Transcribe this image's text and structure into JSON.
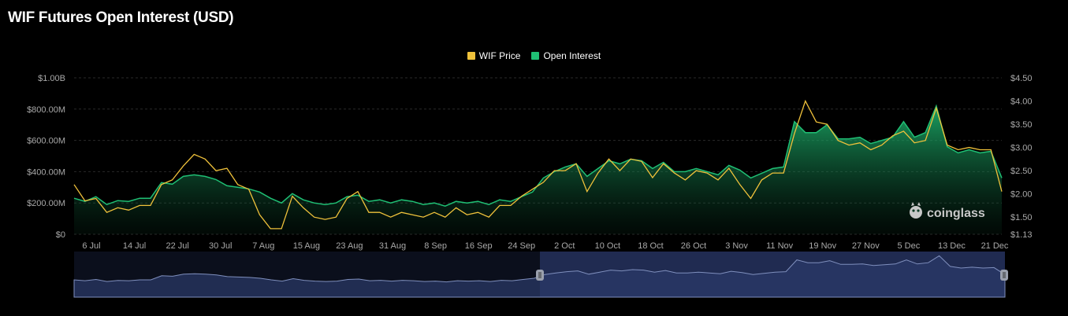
{
  "title": "WIF Futures Open Interest (USD)",
  "watermark": "coinglass",
  "legend": [
    {
      "label": "WIF Price",
      "color": "#f0c23b"
    },
    {
      "label": "Open Interest",
      "color": "#1fbf74"
    }
  ],
  "colors": {
    "price": "#f0c23b",
    "oi": "#1fbf74",
    "navigator": "#1a2440",
    "navigator_line": "#7f8fbd"
  },
  "chart_data": {
    "type": "area",
    "title": "WIF Futures Open Interest (USD)",
    "x_labels": [
      "6 Jul",
      "14 Jul",
      "22 Jul",
      "30 Jul",
      "7 Aug",
      "15 Aug",
      "23 Aug",
      "31 Aug",
      "8 Sep",
      "16 Sep",
      "24 Sep",
      "2 Oct",
      "10 Oct",
      "18 Oct",
      "26 Oct",
      "3 Nov",
      "11 Nov",
      "19 Nov",
      "27 Nov",
      "5 Dec",
      "13 Dec",
      "21 Dec"
    ],
    "y_left_ticks": [
      "$0",
      "$200.00M",
      "$400.00M",
      "$600.00M",
      "$800.00M",
      "$1.00B"
    ],
    "y_left_range": [
      0,
      1000
    ],
    "y_left_unit": "M USD",
    "y_right_ticks": [
      "$1.13",
      "$1.50",
      "$2.00",
      "$2.50",
      "$3.00",
      "$3.50",
      "$4.00",
      "$4.50"
    ],
    "y_right_range": [
      1.13,
      4.5
    ],
    "series": [
      {
        "name": "Open Interest",
        "axis": "left",
        "values": [
          230,
          210,
          240,
          190,
          215,
          210,
          230,
          230,
          330,
          320,
          370,
          380,
          370,
          350,
          310,
          300,
          290,
          270,
          230,
          200,
          260,
          220,
          200,
          190,
          200,
          240,
          250,
          210,
          220,
          200,
          220,
          210,
          190,
          200,
          180,
          210,
          200,
          210,
          190,
          220,
          210,
          240,
          270,
          360,
          400,
          430,
          450,
          370,
          420,
          470,
          450,
          480,
          470,
          420,
          460,
          400,
          400,
          420,
          400,
          380,
          440,
          410,
          360,
          390,
          420,
          430,
          720,
          650,
          650,
          700,
          610,
          610,
          620,
          580,
          600,
          620,
          720,
          620,
          650,
          820,
          560,
          520,
          540,
          520,
          530,
          360
        ]
      },
      {
        "name": "WIF Price",
        "axis": "right",
        "values": [
          2.2,
          1.85,
          1.9,
          1.6,
          1.7,
          1.65,
          1.75,
          1.75,
          2.2,
          2.3,
          2.6,
          2.85,
          2.75,
          2.5,
          2.55,
          2.2,
          2.1,
          1.55,
          1.25,
          1.25,
          1.95,
          1.7,
          1.5,
          1.45,
          1.5,
          1.9,
          2.05,
          1.6,
          1.6,
          1.5,
          1.6,
          1.55,
          1.5,
          1.6,
          1.5,
          1.7,
          1.55,
          1.6,
          1.5,
          1.75,
          1.75,
          1.95,
          2.1,
          2.25,
          2.5,
          2.5,
          2.65,
          2.05,
          2.45,
          2.75,
          2.5,
          2.75,
          2.7,
          2.35,
          2.65,
          2.45,
          2.3,
          2.5,
          2.45,
          2.3,
          2.55,
          2.2,
          1.9,
          2.3,
          2.45,
          2.45,
          3.3,
          4.0,
          3.55,
          3.5,
          3.15,
          3.05,
          3.1,
          2.95,
          3.05,
          3.25,
          3.35,
          3.1,
          3.15,
          3.85,
          3.05,
          2.95,
          3.0,
          2.95,
          2.95,
          2.05
        ]
      }
    ]
  }
}
